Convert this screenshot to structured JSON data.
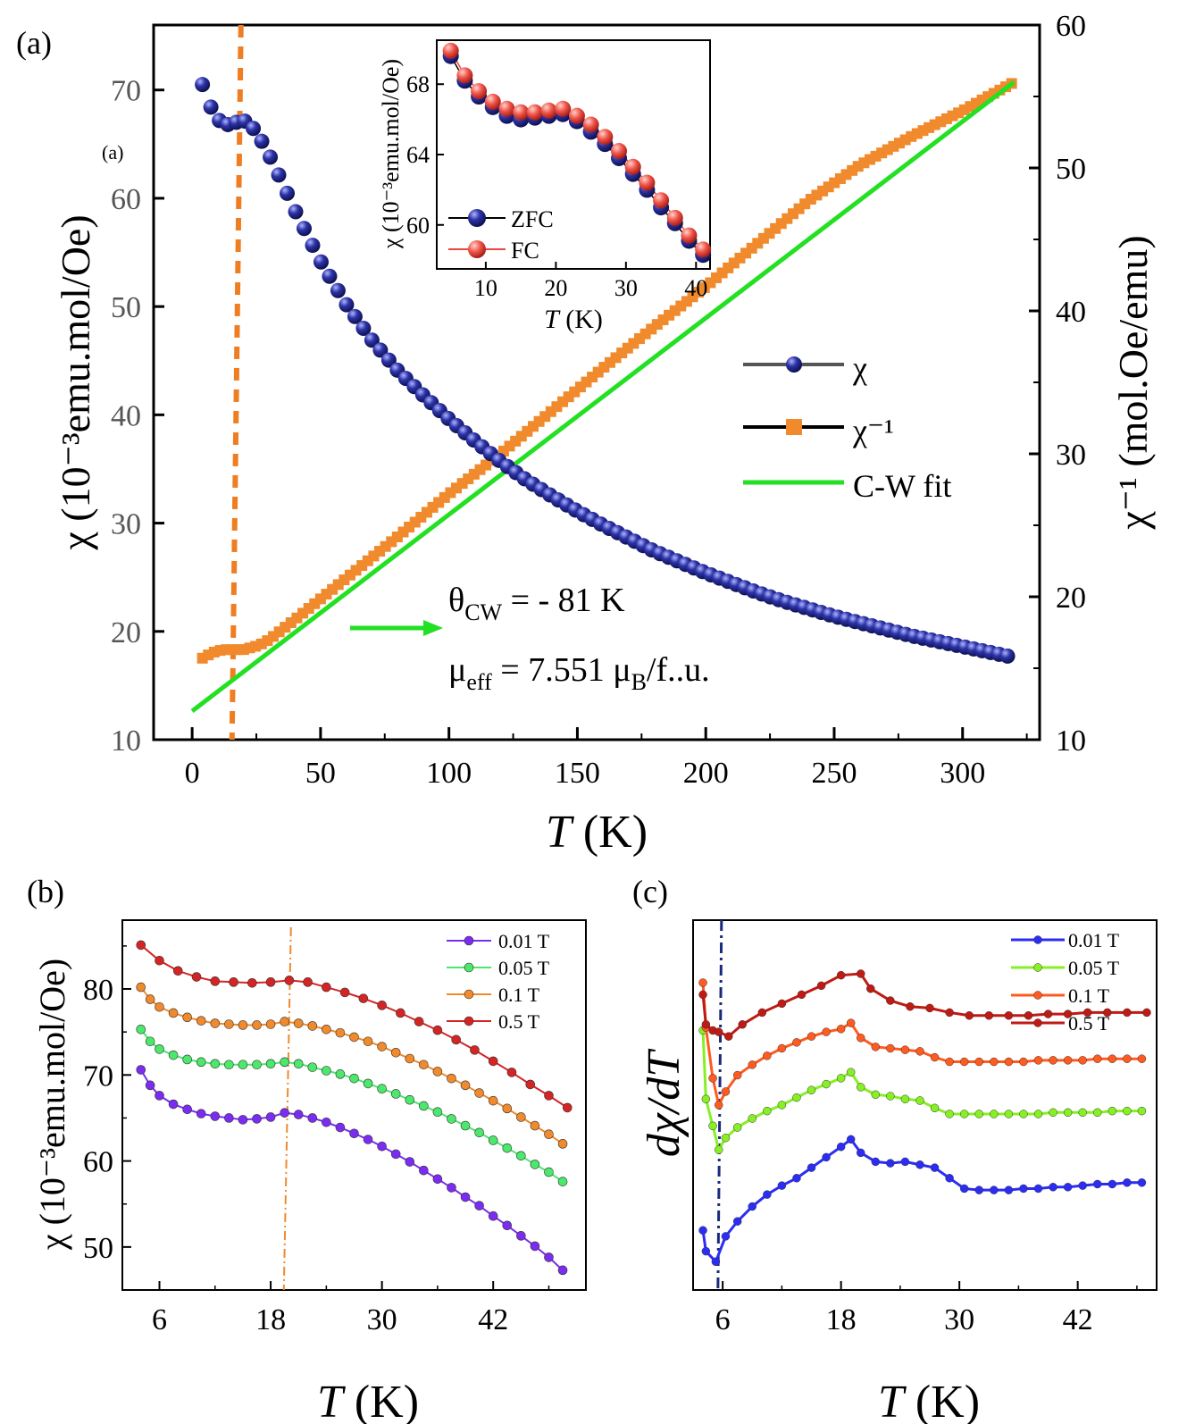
{
  "panel_labels": {
    "a": "(a)",
    "a_stray": "(a)",
    "b": "(b)",
    "c": "(c)"
  },
  "colors": {
    "chi": "#1a1f7a",
    "inv": "#f08a2c",
    "fit": "#22e022",
    "vline_a": "#ef7d22",
    "zfc": "#1a1f7a",
    "fc": "#e8483f",
    "b_001": "#7a2cf0",
    "b_005": "#4be86c",
    "b_01": "#f08a2c",
    "b_05": "#d42424",
    "c_001": "#2b2df5",
    "c_005": "#86f024",
    "c_01": "#ff5a1f",
    "c_05": "#c01a14",
    "vline_c": "#1a2a7a"
  },
  "chart_data": [
    {
      "id": "a-main",
      "type": "scatter",
      "xlabel_italic": "T",
      "xlabel_rest": " (K)",
      "ylabel_left": "χ (10⁻³emu.mol/Oe)",
      "ylabel_right": "χ⁻¹ (mol.Oe/emu)",
      "xlim": [
        -15,
        330
      ],
      "ylim_left": [
        10,
        76
      ],
      "ylim_right": [
        10,
        60
      ],
      "xticks": [
        0,
        50,
        100,
        150,
        200,
        250,
        300
      ],
      "yticks_left": [
        10,
        20,
        30,
        40,
        50,
        60,
        70
      ],
      "yticks_right": [
        10,
        20,
        30,
        40,
        50,
        60
      ],
      "series": [
        {
          "name": "χ",
          "axis": "left",
          "marker": "sphere",
          "x": [
            4,
            6,
            8,
            10,
            12,
            14,
            16,
            18,
            20,
            22,
            24,
            26,
            28,
            30,
            35,
            40,
            50,
            60,
            70,
            80,
            90,
            100,
            110,
            120,
            130,
            140,
            150,
            160,
            170,
            180,
            190,
            200,
            210,
            220,
            230,
            240,
            250,
            260,
            270,
            280,
            290,
            300,
            310,
            320
          ],
          "y": [
            70.5,
            69.2,
            68.0,
            67.3,
            66.9,
            66.8,
            66.9,
            67.1,
            67.2,
            66.9,
            66.4,
            65.7,
            64.9,
            64.0,
            61.5,
            58.9,
            54.2,
            50.2,
            46.9,
            44.1,
            41.8,
            39.6,
            37.6,
            35.7,
            34.0,
            32.5,
            31.1,
            29.8,
            28.6,
            27.4,
            26.4,
            25.4,
            24.5,
            23.6,
            22.8,
            22.1,
            21.4,
            20.8,
            20.2,
            19.6,
            19.1,
            18.6,
            18.1,
            17.6
          ]
        },
        {
          "name": "χ⁻¹",
          "axis": "right",
          "marker": "square",
          "x": [
            4,
            6,
            8,
            10,
            12,
            14,
            16,
            18,
            20,
            22,
            24,
            26,
            28,
            30,
            40,
            60,
            80,
            100,
            120,
            140,
            160,
            180,
            200,
            220,
            240,
            260,
            280,
            300,
            320
          ],
          "y": [
            15.7,
            15.9,
            16.1,
            16.2,
            16.3,
            16.3,
            16.3,
            16.3,
            16.3,
            16.4,
            16.5,
            16.6,
            16.8,
            17.0,
            18.4,
            21.3,
            24.2,
            27.2,
            30.0,
            33.0,
            36.0,
            38.9,
            41.7,
            44.7,
            47.7,
            50.2,
            52.2,
            54.0,
            56.0
          ]
        },
        {
          "name": "C-W fit",
          "axis": "right",
          "line": true,
          "x": [
            0,
            320
          ],
          "y": [
            12.0,
            56.0
          ]
        }
      ],
      "legend": [
        "χ",
        "χ⁻¹",
        "C-W fit"
      ],
      "vline_x": 19,
      "annotation_theta_main": "θ",
      "annotation_theta_sub": "CW",
      "annotation_theta_rest": " = - 81 K",
      "annotation_mu_main": "μ",
      "annotation_mu_sub": "eff",
      "annotation_mu_mid": " = 7.551 μ",
      "annotation_mu_sub2": "B",
      "annotation_mu_rest": "/f..u."
    },
    {
      "id": "a-inset",
      "type": "scatter",
      "xlabel_italic": "T",
      "xlabel_rest": " (K)",
      "ylabel": "χ (10⁻³emu.mol/Oe)",
      "xlim": [
        3,
        42
      ],
      "ylim": [
        57.5,
        70.5
      ],
      "xticks": [
        10,
        20,
        30,
        40
      ],
      "yticks": [
        60,
        64,
        68
      ],
      "series": [
        {
          "name": "ZFC",
          "x": [
            5,
            7,
            9,
            11,
            13,
            15,
            17,
            19,
            21,
            23,
            25,
            27,
            29,
            31,
            33,
            35,
            37,
            39,
            41
          ],
          "y": [
            69.6,
            68.2,
            67.3,
            66.7,
            66.2,
            66.0,
            66.1,
            66.2,
            66.3,
            65.9,
            65.3,
            64.6,
            63.8,
            62.9,
            62.0,
            61.0,
            60.1,
            59.1,
            58.3
          ]
        },
        {
          "name": "FC",
          "x": [
            5,
            7,
            9,
            11,
            13,
            15,
            17,
            19,
            21,
            23,
            25,
            27,
            29,
            31,
            33,
            35,
            37,
            39,
            41
          ],
          "y": [
            69.9,
            68.5,
            67.6,
            67.0,
            66.6,
            66.4,
            66.4,
            66.5,
            66.6,
            66.2,
            65.7,
            65.0,
            64.2,
            63.3,
            62.4,
            61.4,
            60.4,
            59.4,
            58.6
          ]
        }
      ],
      "legend": [
        "ZFC",
        "FC"
      ]
    },
    {
      "id": "b",
      "type": "line",
      "xlabel_italic": "T",
      "xlabel_rest": " (K)",
      "ylabel": "χ (10⁻³emu.mol/Oe)",
      "xlim": [
        2,
        52
      ],
      "ylim": [
        45,
        88
      ],
      "xticks": [
        6,
        18,
        30,
        42
      ],
      "yticks": [
        50,
        60,
        70,
        80
      ],
      "vline_x": 19.8,
      "series": [
        {
          "name": "0.01 T",
          "x": [
            4,
            5,
            6,
            7.5,
            9,
            10.5,
            12,
            13.5,
            15,
            16.5,
            18,
            19.5,
            21,
            22.5,
            24,
            25.5,
            27,
            28.5,
            30,
            31.5,
            33,
            34.5,
            36,
            37.5,
            39,
            40.5,
            42,
            43.5,
            45,
            46.5,
            48,
            49.5
          ],
          "y": [
            70.6,
            68.8,
            67.6,
            66.6,
            66.0,
            65.5,
            65.2,
            65.0,
            64.8,
            64.9,
            65.1,
            65.6,
            65.4,
            65.0,
            64.5,
            63.9,
            63.2,
            62.5,
            61.7,
            60.8,
            59.9,
            58.9,
            57.9,
            56.9,
            55.8,
            54.8,
            53.6,
            52.5,
            51.3,
            50.1,
            48.8,
            47.3
          ]
        },
        {
          "name": "0.05 T",
          "x": [
            4,
            5,
            6,
            7.5,
            9,
            10.5,
            12,
            13.5,
            15,
            16.5,
            18,
            19.5,
            21,
            22.5,
            24,
            25.5,
            27,
            28.5,
            30,
            31.5,
            33,
            34.5,
            36,
            37.5,
            39,
            40.5,
            42,
            43.5,
            45,
            46.5,
            48,
            49.5
          ],
          "y": [
            75.3,
            73.9,
            73.0,
            72.3,
            71.8,
            71.5,
            71.3,
            71.2,
            71.2,
            71.2,
            71.3,
            71.5,
            71.3,
            70.9,
            70.5,
            70.1,
            69.6,
            69.0,
            68.4,
            67.8,
            67.1,
            66.4,
            65.7,
            64.9,
            64.1,
            63.3,
            62.4,
            61.5,
            60.6,
            59.6,
            58.7,
            57.6
          ]
        },
        {
          "name": "0.1 T",
          "x": [
            4,
            5,
            6,
            7.5,
            9,
            10.5,
            12,
            13.5,
            15,
            16.5,
            18,
            19.5,
            21,
            22.5,
            24,
            25.5,
            27,
            28.5,
            30,
            31.5,
            33,
            34.5,
            36,
            37.5,
            39,
            40.5,
            42,
            43.5,
            45,
            46.5,
            48,
            49.5
          ],
          "y": [
            80.2,
            78.8,
            77.9,
            77.2,
            76.7,
            76.3,
            76.0,
            75.9,
            75.8,
            75.8,
            75.9,
            76.2,
            76.0,
            75.7,
            75.3,
            74.9,
            74.4,
            73.9,
            73.3,
            72.6,
            71.9,
            71.2,
            70.4,
            69.6,
            68.8,
            67.9,
            67.0,
            66.1,
            65.1,
            64.1,
            63.1,
            62.0
          ]
        },
        {
          "name": "0.5 T",
          "x": [
            4,
            6,
            8,
            10,
            12,
            14,
            16,
            18,
            20,
            22,
            24,
            26,
            28,
            30,
            32,
            34,
            36,
            38,
            40,
            42,
            44,
            46,
            48,
            50
          ],
          "y": [
            85.1,
            83.3,
            82.1,
            81.4,
            80.9,
            80.8,
            80.7,
            80.8,
            81.0,
            80.8,
            80.2,
            79.6,
            78.9,
            78.1,
            77.2,
            76.2,
            75.2,
            74.1,
            72.9,
            71.6,
            70.3,
            68.9,
            67.6,
            66.2
          ]
        }
      ],
      "legend": [
        "0.01 T",
        "0.05 T",
        "0.1 T",
        "0.5 T"
      ]
    },
    {
      "id": "c",
      "type": "line",
      "xlabel_italic": "T",
      "xlabel_rest": " (K)",
      "ylabel": "dχ/dT",
      "xlim": [
        3,
        50
      ],
      "ylim": [
        0,
        100
      ],
      "xticks": [
        6,
        18,
        30,
        42
      ],
      "vline_x": 5.7,
      "series": [
        {
          "name": "0.01 T",
          "x": [
            4,
            4.3,
            5.3,
            6.3,
            7.5,
            9,
            10.5,
            12,
            13.5,
            15,
            16.5,
            18,
            19,
            20,
            21.5,
            23,
            24.5,
            26,
            27.5,
            29,
            30.5,
            32,
            33.5,
            35,
            36.5,
            38,
            39.5,
            41,
            42.5,
            44,
            45.5,
            47,
            48.5
          ],
          "y": [
            14,
            7,
            3.5,
            12,
            17,
            22,
            26,
            29,
            31.5,
            35,
            38.5,
            42,
            44.5,
            40,
            37,
            36.5,
            37,
            36,
            35,
            31.5,
            28,
            27.5,
            27.5,
            27.5,
            28,
            28,
            28.5,
            28.5,
            29,
            29.5,
            29.5,
            30,
            30
          ]
        },
        {
          "name": "0.05 T",
          "x": [
            4,
            4.3,
            5,
            5.6,
            6.3,
            7.5,
            9,
            10.5,
            12,
            13.5,
            15,
            16.5,
            18,
            19,
            20,
            21.5,
            23,
            24.5,
            26,
            27.5,
            29,
            30.5,
            32,
            33.5,
            35,
            36.5,
            38,
            39.5,
            41,
            42.5,
            44,
            45.5,
            47,
            48.5
          ],
          "y": [
            81,
            58,
            49,
            41,
            45,
            48.5,
            51.5,
            54,
            56,
            58.5,
            61,
            63,
            65,
            67,
            62,
            59.5,
            59,
            58,
            57.5,
            55,
            53,
            53,
            53,
            53,
            53,
            53,
            53,
            53.5,
            53.5,
            53.5,
            53.5,
            54,
            54,
            54
          ]
        },
        {
          "name": "0.1 T",
          "x": [
            4,
            4.3,
            5,
            5.6,
            6.3,
            7.5,
            9,
            10.5,
            12,
            13.5,
            15,
            16.5,
            18,
            19,
            20,
            21.5,
            23,
            24.5,
            26,
            27.5,
            29,
            30.5,
            32,
            33.5,
            35,
            36.5,
            38,
            39.5,
            41,
            42.5,
            44,
            45.5,
            47,
            48.5
          ],
          "y": [
            97,
            82,
            65,
            56,
            60.5,
            66,
            69.5,
            72.5,
            75,
            77,
            79,
            80.5,
            81.5,
            83.5,
            78.5,
            75.5,
            75,
            74.5,
            74,
            72,
            70.5,
            70.5,
            70.5,
            70.5,
            70.5,
            70.5,
            71,
            71,
            71,
            71,
            71.5,
            71.5,
            71.5,
            71.5
          ]
        },
        {
          "name": "0.5 T",
          "x": [
            4,
            4.3,
            5,
            5.6,
            6.6,
            8,
            10,
            12,
            14,
            16,
            18,
            20,
            21,
            23,
            25,
            27,
            29,
            31,
            33,
            35,
            37,
            39,
            41,
            43,
            45,
            47,
            49
          ],
          "y": [
            93,
            83,
            81,
            80.5,
            79,
            83,
            87,
            90,
            93,
            96,
            99.5,
            100,
            95,
            91,
            89,
            88.5,
            87,
            86,
            86,
            86,
            86,
            86.5,
            86.5,
            87,
            87,
            87,
            87
          ]
        }
      ],
      "legend": [
        "0.01 T",
        "0.05 T",
        "0.1 T",
        "0.5 T"
      ]
    }
  ]
}
